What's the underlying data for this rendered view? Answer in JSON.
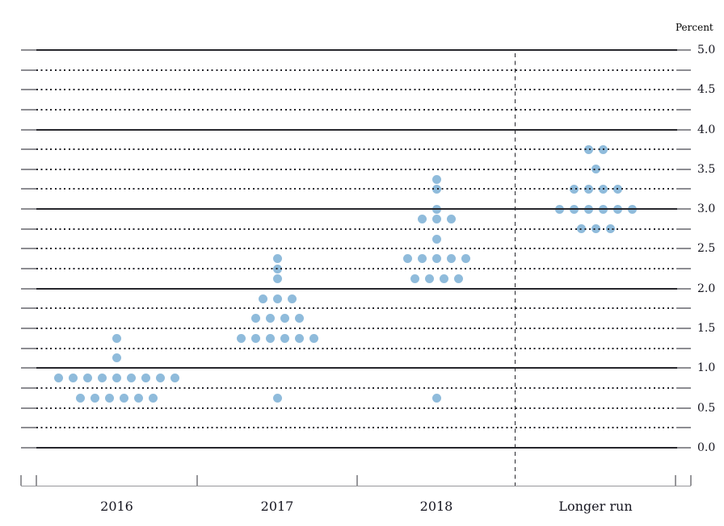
{
  "chart_data": {
    "type": "scatter",
    "subtype": "fomc-dot-plot",
    "ylabel": "Percent",
    "ylim": [
      0.0,
      5.0
    ],
    "gridline_interval": 0.25,
    "y_label_interval": 0.5,
    "grid": "solid horizontal lines at integer percents, dotted lines at quarter percents",
    "legend_position": "none",
    "y_tick_labels": [
      "5.0",
      "4.5",
      "4.0",
      "3.5",
      "3.0",
      "2.5",
      "2.0",
      "1.5",
      "1.0",
      "0.5",
      "0.0"
    ],
    "categories": [
      "2016",
      "2017",
      "2018",
      "Longer run"
    ],
    "series": [
      {
        "name": "2016",
        "dots": [
          {
            "rate": 1.375,
            "count": 1
          },
          {
            "rate": 1.125,
            "count": 1
          },
          {
            "rate": 0.875,
            "count": 9
          },
          {
            "rate": 0.625,
            "count": 6
          }
        ]
      },
      {
        "name": "2017",
        "dots": [
          {
            "rate": 2.375,
            "count": 1
          },
          {
            "rate": 2.25,
            "count": 1
          },
          {
            "rate": 2.125,
            "count": 1
          },
          {
            "rate": 1.875,
            "count": 3
          },
          {
            "rate": 1.625,
            "count": 4
          },
          {
            "rate": 1.375,
            "count": 6
          },
          {
            "rate": 0.625,
            "count": 1
          }
        ]
      },
      {
        "name": "2018",
        "dots": [
          {
            "rate": 3.375,
            "count": 1
          },
          {
            "rate": 3.25,
            "count": 1
          },
          {
            "rate": 3.0,
            "count": 1
          },
          {
            "rate": 2.875,
            "count": 3
          },
          {
            "rate": 2.625,
            "count": 1
          },
          {
            "rate": 2.375,
            "count": 5
          },
          {
            "rate": 2.125,
            "count": 4
          },
          {
            "rate": 0.625,
            "count": 1
          }
        ]
      },
      {
        "name": "Longer run",
        "dots": [
          {
            "rate": 3.75,
            "count": 2
          },
          {
            "rate": 3.5,
            "count": 1
          },
          {
            "rate": 3.25,
            "count": 4
          },
          {
            "rate": 3.0,
            "count": 6
          },
          {
            "rate": 2.75,
            "count": 3
          }
        ]
      }
    ]
  },
  "colors": {
    "dot": "#8FBBDB",
    "grid_dark": "#26262C",
    "grid_gray": "#8D8D92",
    "axis_gray": "#97979B",
    "text": "#15151F"
  }
}
